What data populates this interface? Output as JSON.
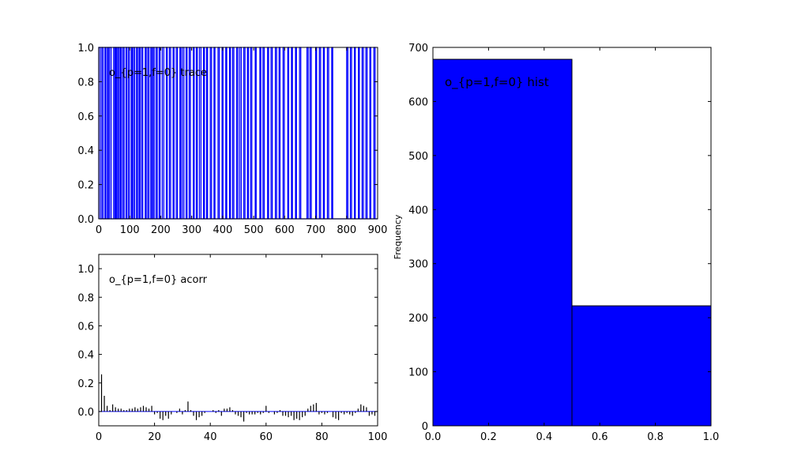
{
  "chart_data": [
    {
      "type": "line",
      "title": "o_{p=1,f=0} trace",
      "xlim": [
        0,
        900
      ],
      "ylim": [
        0,
        1
      ],
      "xticks": [
        0,
        100,
        200,
        300,
        400,
        500,
        600,
        700,
        800,
        900
      ],
      "yticks": [
        0.0,
        0.2,
        0.4,
        0.6,
        0.8,
        1.0
      ],
      "xtick_labels": [
        "0",
        "100",
        "200",
        "300",
        "400",
        "500",
        "600",
        "700",
        "800",
        "900"
      ],
      "ytick_labels": [
        "0.0",
        "0.2",
        "0.4",
        "0.6",
        "0.8",
        "1.0"
      ],
      "line_color": "#0000ff",
      "segments_value_1": [
        [
          0,
          5
        ],
        [
          10,
          14
        ],
        [
          20,
          23
        ],
        [
          28,
          31
        ],
        [
          35,
          40
        ],
        [
          48,
          52
        ],
        [
          55,
          58
        ],
        [
          62,
          66
        ],
        [
          70,
          73
        ],
        [
          78,
          82
        ],
        [
          88,
          90
        ],
        [
          95,
          99
        ],
        [
          105,
          108
        ],
        [
          112,
          116
        ],
        [
          122,
          125
        ],
        [
          130,
          133
        ],
        [
          138,
          142
        ],
        [
          150,
          153
        ],
        [
          158,
          162
        ],
        [
          168,
          171
        ],
        [
          175,
          179
        ],
        [
          185,
          189
        ],
        [
          195,
          198
        ],
        [
          205,
          210
        ],
        [
          218,
          221
        ],
        [
          228,
          232
        ],
        [
          240,
          243
        ],
        [
          250,
          254
        ],
        [
          262,
          265
        ],
        [
          270,
          275
        ],
        [
          282,
          285
        ],
        [
          292,
          296
        ],
        [
          305,
          308
        ],
        [
          315,
          318
        ],
        [
          325,
          330
        ],
        [
          338,
          341
        ],
        [
          348,
          351
        ],
        [
          360,
          364
        ],
        [
          372,
          375
        ],
        [
          385,
          389
        ],
        [
          398,
          401
        ],
        [
          410,
          413
        ],
        [
          422,
          425
        ],
        [
          432,
          436
        ],
        [
          445,
          449
        ],
        [
          455,
          460
        ],
        [
          468,
          472
        ],
        [
          480,
          483
        ],
        [
          490,
          494
        ],
        [
          505,
          508
        ],
        [
          520,
          523
        ],
        [
          530,
          534
        ],
        [
          545,
          548
        ],
        [
          556,
          560
        ],
        [
          570,
          574
        ],
        [
          582,
          585
        ],
        [
          595,
          599
        ],
        [
          610,
          613
        ],
        [
          622,
          625
        ],
        [
          635,
          638
        ],
        [
          648,
          652
        ],
        [
          672,
          676
        ],
        [
          682,
          686
        ],
        [
          700,
          703
        ],
        [
          712,
          716
        ],
        [
          725,
          728
        ],
        [
          738,
          742
        ],
        [
          752,
          755
        ],
        [
          800,
          804
        ],
        [
          812,
          816
        ],
        [
          825,
          828
        ],
        [
          838,
          841
        ],
        [
          850,
          854
        ],
        [
          862,
          866
        ],
        [
          875,
          878
        ],
        [
          888,
          892
        ]
      ]
    },
    {
      "type": "bar",
      "title": "o_{p=1,f=0} acorr",
      "xlim": [
        0,
        100
      ],
      "ylim": [
        -0.1,
        1.1
      ],
      "xticks": [
        0,
        20,
        40,
        60,
        80,
        100
      ],
      "yticks": [
        0.0,
        0.2,
        0.4,
        0.6,
        0.8,
        1.0
      ],
      "xtick_labels": [
        "0",
        "20",
        "40",
        "60",
        "80",
        "100"
      ],
      "ytick_labels": [
        "0.0",
        "0.2",
        "0.4",
        "0.6",
        "0.8",
        "1.0"
      ],
      "bar_color": "#000000",
      "baseline_color": "#0000ff",
      "x": [
        1,
        2,
        3,
        4,
        5,
        6,
        7,
        8,
        9,
        10,
        11,
        12,
        13,
        14,
        15,
        16,
        17,
        18,
        19,
        20,
        21,
        22,
        23,
        24,
        25,
        26,
        27,
        28,
        29,
        30,
        31,
        32,
        33,
        34,
        35,
        36,
        37,
        38,
        39,
        40,
        41,
        42,
        43,
        44,
        45,
        46,
        47,
        48,
        49,
        50,
        51,
        52,
        53,
        54,
        55,
        56,
        57,
        58,
        59,
        60,
        61,
        62,
        63,
        64,
        65,
        66,
        67,
        68,
        69,
        70,
        71,
        72,
        73,
        74,
        75,
        76,
        77,
        78,
        79,
        80,
        81,
        82,
        83,
        84,
        85,
        86,
        87,
        88,
        89,
        90,
        91,
        92,
        93,
        94,
        95,
        96,
        97,
        98,
        99
      ],
      "values": [
        0.26,
        0.11,
        0.04,
        0.01,
        0.05,
        0.03,
        0.02,
        0.02,
        0.01,
        0.01,
        0.02,
        0.02,
        0.03,
        0.02,
        0.03,
        0.04,
        0.03,
        0.02,
        0.04,
        -0.02,
        -0.01,
        -0.05,
        -0.06,
        -0.03,
        -0.05,
        -0.02,
        0.0,
        -0.01,
        0.02,
        -0.02,
        0.01,
        0.07,
        0.01,
        -0.03,
        -0.06,
        -0.04,
        -0.03,
        -0.01,
        0.0,
        0.0,
        0.01,
        -0.01,
        0.01,
        -0.03,
        0.02,
        0.02,
        0.03,
        0.01,
        -0.02,
        -0.03,
        -0.04,
        -0.07,
        -0.01,
        -0.02,
        -0.02,
        -0.02,
        -0.01,
        -0.02,
        -0.01,
        0.04,
        -0.01,
        0.0,
        -0.02,
        -0.01,
        0.01,
        -0.03,
        -0.03,
        -0.04,
        -0.03,
        -0.06,
        -0.05,
        -0.06,
        -0.04,
        -0.03,
        0.02,
        0.04,
        0.05,
        0.06,
        -0.02,
        -0.01,
        -0.02,
        -0.01,
        0.0,
        -0.04,
        -0.05,
        -0.06,
        -0.01,
        -0.02,
        -0.01,
        -0.02,
        -0.03,
        -0.01,
        0.02,
        0.05,
        0.04,
        0.03,
        -0.03,
        -0.02,
        -0.03
      ]
    },
    {
      "type": "bar",
      "title": "o_{p=1,f=0} hist",
      "ylabel": "Frequency",
      "xlim": [
        0,
        1
      ],
      "ylim": [
        0,
        700
      ],
      "xticks": [
        0.0,
        0.2,
        0.4,
        0.6,
        0.8,
        1.0
      ],
      "yticks": [
        0,
        100,
        200,
        300,
        400,
        500,
        600,
        700
      ],
      "xtick_labels": [
        "0.0",
        "0.2",
        "0.4",
        "0.6",
        "0.8",
        "1.0"
      ],
      "ytick_labels": [
        "0",
        "100",
        "200",
        "300",
        "400",
        "500",
        "600",
        "700"
      ],
      "bar_color": "#0000ff",
      "bins": [
        [
          0.0,
          0.5
        ],
        [
          0.5,
          1.0
        ]
      ],
      "values": [
        678,
        222
      ]
    }
  ]
}
